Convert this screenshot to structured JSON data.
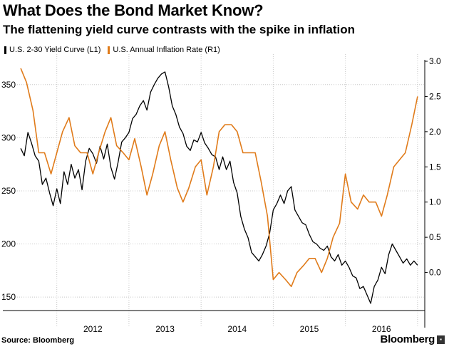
{
  "header": {
    "title": "What Does the Bond Market Know?",
    "subtitle": "The flattening yield curve contrasts with the spike in inflation"
  },
  "footer": {
    "source": "Source: Bloomberg",
    "brand": "Bloomberg"
  },
  "colors": {
    "yield_curve": "#000000",
    "inflation": "#e07b1a",
    "grid": "#c8c8c8"
  },
  "chart_data": {
    "type": "line",
    "xlabel": "",
    "x_ticks": [
      "2012",
      "2013",
      "2014",
      "2015",
      "2016"
    ],
    "grid": true,
    "legend_position": "top-left",
    "left_axis": {
      "label": "",
      "range": [
        140,
        372
      ],
      "ticks": [
        "150",
        "200",
        "250",
        "300",
        "350"
      ]
    },
    "right_axis": {
      "label": "",
      "range": [
        -0.5,
        3.0
      ],
      "ticks": [
        "0.0",
        "0.5",
        "1.0",
        "1.5",
        "2.0",
        "2.5",
        "3.0"
      ]
    },
    "series": [
      {
        "name": "U.S. 2-30 Yield Curve (L1)",
        "axis": "left",
        "x": [
          2011.5,
          2011.55,
          2011.6,
          2011.65,
          2011.7,
          2011.75,
          2011.8,
          2011.85,
          2011.9,
          2011.95,
          2012.0,
          2012.05,
          2012.1,
          2012.15,
          2012.2,
          2012.25,
          2012.3,
          2012.35,
          2012.4,
          2012.45,
          2012.5,
          2012.55,
          2012.6,
          2012.65,
          2012.7,
          2012.75,
          2012.8,
          2012.85,
          2012.9,
          2012.95,
          2013.0,
          2013.05,
          2013.1,
          2013.15,
          2013.2,
          2013.25,
          2013.3,
          2013.35,
          2013.4,
          2013.45,
          2013.5,
          2013.55,
          2013.6,
          2013.65,
          2013.7,
          2013.75,
          2013.8,
          2013.85,
          2013.9,
          2013.95,
          2014.0,
          2014.05,
          2014.1,
          2014.15,
          2014.2,
          2014.25,
          2014.3,
          2014.35,
          2014.4,
          2014.45,
          2014.5,
          2014.55,
          2014.6,
          2014.65,
          2014.7,
          2014.75,
          2014.8,
          2014.85,
          2014.9,
          2014.95,
          2015.0,
          2015.05,
          2015.1,
          2015.15,
          2015.2,
          2015.25,
          2015.3,
          2015.35,
          2015.4,
          2015.45,
          2015.5,
          2015.55,
          2015.6,
          2015.65,
          2015.7,
          2015.75,
          2015.8,
          2015.85,
          2015.9,
          2015.95,
          2016.0,
          2016.05,
          2016.1,
          2016.15,
          2016.2,
          2016.25,
          2016.3,
          2016.35,
          2016.4,
          2016.45,
          2016.5,
          2016.55,
          2016.6,
          2016.65,
          2016.7,
          2016.75,
          2016.8,
          2016.85,
          2016.9,
          2016.95,
          2017.0
        ],
        "values": [
          290,
          283,
          305,
          295,
          283,
          278,
          256,
          262,
          248,
          236,
          252,
          238,
          268,
          256,
          275,
          262,
          270,
          251,
          278,
          290,
          285,
          276,
          292,
          280,
          294,
          272,
          261,
          277,
          296,
          300,
          305,
          318,
          322,
          330,
          335,
          326,
          343,
          350,
          356,
          360,
          362,
          348,
          330,
          322,
          310,
          304,
          292,
          288,
          298,
          296,
          305,
          295,
          290,
          284,
          282,
          270,
          282,
          270,
          278,
          258,
          248,
          226,
          214,
          206,
          192,
          188,
          184,
          190,
          198,
          210,
          232,
          238,
          246,
          238,
          250,
          254,
          232,
          226,
          220,
          218,
          209,
          202,
          200,
          196,
          194,
          198,
          188,
          184,
          190,
          180,
          184,
          178,
          170,
          168,
          158,
          160,
          152,
          144,
          160,
          166,
          178,
          172,
          190,
          200,
          194,
          188,
          182,
          186,
          180,
          184,
          180
        ],
        "color": "#000000"
      },
      {
        "name": "U.S. Annual Inflation Rate (R1)",
        "axis": "right",
        "x": [
          2011.5,
          2011.58,
          2011.67,
          2011.75,
          2011.83,
          2011.92,
          2012.0,
          2012.08,
          2012.17,
          2012.25,
          2012.33,
          2012.42,
          2012.5,
          2012.58,
          2012.67,
          2012.75,
          2012.83,
          2012.92,
          2013.0,
          2013.08,
          2013.17,
          2013.25,
          2013.33,
          2013.42,
          2013.5,
          2013.58,
          2013.67,
          2013.75,
          2013.83,
          2013.92,
          2014.0,
          2014.08,
          2014.17,
          2014.25,
          2014.33,
          2014.42,
          2014.5,
          2014.58,
          2014.67,
          2014.75,
          2014.83,
          2014.92,
          2015.0,
          2015.08,
          2015.17,
          2015.25,
          2015.33,
          2015.42,
          2015.5,
          2015.58,
          2015.67,
          2015.75,
          2015.83,
          2015.92,
          2016.0,
          2016.08,
          2016.17,
          2016.25,
          2016.33,
          2016.42,
          2016.5,
          2016.58,
          2016.67,
          2016.75,
          2016.83,
          2016.92,
          2017.0
        ],
        "values": [
          2.9,
          2.7,
          2.3,
          1.7,
          1.7,
          1.4,
          1.7,
          2.0,
          2.2,
          1.8,
          1.7,
          1.7,
          1.4,
          1.7,
          2.0,
          2.2,
          1.8,
          1.7,
          1.6,
          1.9,
          1.5,
          1.1,
          1.4,
          1.8,
          2.0,
          1.6,
          1.2,
          1.0,
          1.2,
          1.5,
          1.6,
          1.1,
          1.5,
          2.0,
          2.1,
          2.1,
          2.0,
          1.7,
          1.7,
          1.7,
          1.3,
          0.8,
          -0.1,
          0.0,
          -0.1,
          -0.2,
          0.0,
          0.1,
          0.2,
          0.2,
          0.0,
          0.2,
          0.5,
          0.7,
          1.4,
          1.0,
          0.9,
          1.1,
          1.0,
          1.0,
          0.8,
          1.1,
          1.5,
          1.6,
          1.7,
          2.1,
          2.5
        ],
        "color": "#e07b1a"
      }
    ]
  }
}
